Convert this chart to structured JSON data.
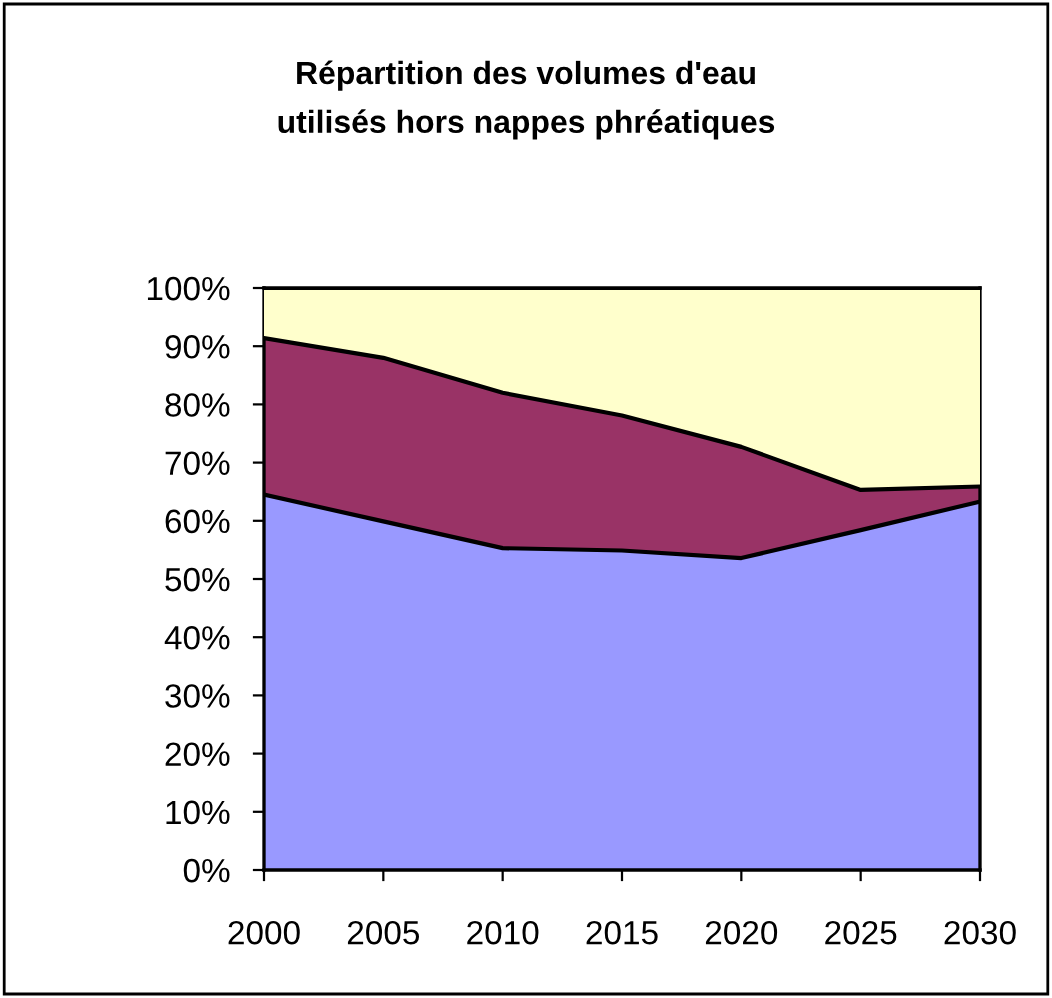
{
  "chart_data": {
    "type": "area",
    "title": "Répartition des volumes d'eau\nutilisés hors nappes phréatiques",
    "categories": [
      "2000",
      "2005",
      "2010",
      "2015",
      "2020",
      "2025",
      "2030"
    ],
    "stacked": true,
    "series": [
      {
        "color": "#9999ff",
        "values": [
          64.5,
          59.9,
          55.3,
          54.9,
          53.6,
          58.4,
          63.3
        ]
      },
      {
        "color": "#993366",
        "values": [
          26.9,
          28.1,
          26.7,
          23.2,
          19.1,
          6.9,
          2.6
        ]
      },
      {
        "color": "#ffffcc",
        "values": [
          8.6,
          12.0,
          18.0,
          21.9,
          27.3,
          34.7,
          34.1
        ]
      }
    ],
    "ylim": [
      0,
      100
    ],
    "yticks": [
      {
        "value": 0,
        "label": "0%"
      },
      {
        "value": 10,
        "label": "10%"
      },
      {
        "value": 20,
        "label": "20%"
      },
      {
        "value": 30,
        "label": "30%"
      },
      {
        "value": 40,
        "label": "40%"
      },
      {
        "value": 50,
        "label": "50%"
      },
      {
        "value": 60,
        "label": "60%"
      },
      {
        "value": 70,
        "label": "70%"
      },
      {
        "value": 80,
        "label": "80%"
      },
      {
        "value": 90,
        "label": "90%"
      },
      {
        "value": 100,
        "label": "100%"
      }
    ],
    "grid": false,
    "legend": false
  }
}
